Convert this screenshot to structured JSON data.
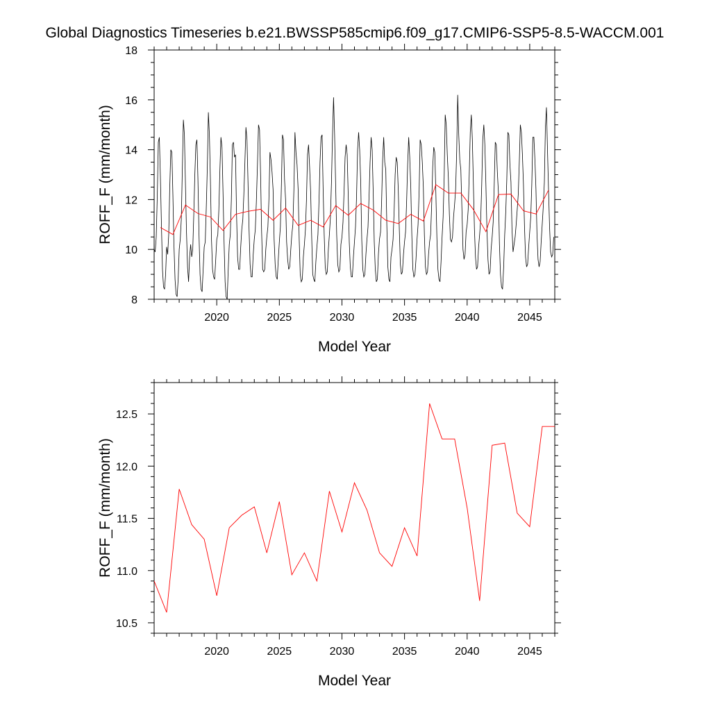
{
  "figure_title": "Global Diagnostics Timeseries b.e21.BWSSP585cmip6.f09_g17.CMIP6-SSP5-8.5-WACCM.001",
  "colors": {
    "monthly": "#000000",
    "annual": "#ff0000",
    "frame": "#000000"
  },
  "chart_data": [
    {
      "type": "line",
      "xlabel": "Model Year",
      "ylabel": "ROFF_F (mm/month)",
      "xlim": [
        2015,
        2047
      ],
      "ylim": [
        8,
        18
      ],
      "x_ticks": [
        2020,
        2025,
        2030,
        2035,
        2040,
        2045
      ],
      "y_ticks": [
        8,
        10,
        12,
        14,
        16,
        18
      ],
      "grid": false,
      "series": [
        {
          "kind": "monthly",
          "x_start": 2015.0,
          "x_step": 0.08333,
          "values": [
            10.0,
            9.9,
            10.5,
            12.1,
            14.3,
            14.5,
            12.9,
            11.0,
            9.2,
            8.5,
            8.4,
            9.0,
            10.1,
            9.8,
            10.6,
            12.5,
            14.0,
            13.9,
            12.2,
            10.2,
            8.8,
            8.2,
            8.1,
            8.8,
            10.0,
            10.4,
            11.2,
            13.2,
            15.2,
            14.6,
            12.6,
            10.7,
            9.3,
            8.7,
            9.7,
            10.2,
            9.7,
            10.0,
            11.4,
            13.0,
            14.2,
            14.4,
            12.8,
            10.6,
            9.0,
            8.4,
            8.3,
            9.2,
            10.1,
            10.3,
            11.7,
            13.3,
            15.5,
            14.6,
            12.7,
            10.4,
            9.2,
            8.9,
            8.8,
            9.6,
            10.4,
            10.6,
            11.6,
            13.2,
            14.5,
            14.1,
            12.3,
            10.3,
            8.7,
            8.1,
            8.0,
            9.2,
            10.2,
            10.6,
            12.0,
            14.2,
            14.3,
            13.7,
            13.8,
            11.4,
            9.7,
            9.2,
            9.2,
            10.1,
            10.8,
            11.2,
            12.2,
            13.5,
            14.9,
            14.4,
            12.7,
            10.8,
            9.4,
            8.9,
            8.9,
            9.8,
            10.4,
            10.8,
            11.9,
            13.4,
            15.0,
            14.8,
            13.0,
            10.7,
            9.2,
            9.1,
            9.2,
            10.0,
            10.5,
            10.9,
            12.0,
            13.9,
            13.6,
            13.1,
            12.4,
            10.4,
            9.4,
            8.9,
            8.8,
            9.6,
            10.3,
            10.9,
            12.6,
            14.6,
            14.4,
            12.8,
            12.0,
            10.3,
            9.6,
            9.2,
            9.3,
            10.0,
            10.6,
            11.0,
            12.4,
            14.7,
            13.9,
            13.4,
            12.4,
            10.4,
            9.0,
            8.7,
            8.8,
            9.7,
            10.2,
            10.8,
            12.0,
            13.8,
            14.2,
            13.3,
            12.3,
            10.5,
            9.0,
            8.8,
            8.7,
            9.5,
            10.1,
            10.6,
            11.9,
            13.5,
            14.5,
            14.6,
            12.4,
            10.6,
            9.3,
            9.0,
            9.1,
            10.0,
            10.6,
            11.3,
            12.7,
            14.6,
            16.1,
            14.6,
            12.6,
            10.6,
            9.4,
            9.1,
            9.2,
            10.2,
            10.5,
            11.1,
            12.3,
            13.7,
            14.2,
            13.8,
            12.2,
            10.3,
            9.3,
            8.9,
            8.9,
            9.7,
            10.3,
            10.9,
            12.1,
            14.0,
            14.7,
            14.0,
            12.7,
            10.4,
            9.2,
            8.9,
            9.0,
            9.8,
            10.4,
            10.9,
            12.1,
            13.5,
            14.5,
            14.0,
            12.3,
            10.3,
            9.2,
            8.7,
            8.8,
            9.8,
            10.4,
            10.7,
            11.9,
            13.6,
            14.5,
            13.5,
            13.2,
            11.0,
            9.3,
            8.8,
            8.7,
            9.7,
            10.0,
            10.4,
            11.5,
            13.0,
            13.7,
            13.5,
            12.4,
            10.8,
            9.4,
            9.0,
            9.1,
            9.8,
            10.3,
            10.7,
            11.9,
            13.4,
            14.5,
            13.7,
            12.5,
            10.6,
            9.2,
            8.9,
            9.0,
            9.6,
            10.4,
            11.0,
            12.3,
            14.4,
            14.2,
            13.5,
            12.5,
            10.6,
            9.3,
            9.0,
            9.1,
            9.8,
            10.3,
            10.6,
            11.8,
            13.3,
            14.1,
            13.9,
            12.3,
            10.5,
            9.2,
            8.8,
            8.7,
            9.5,
            10.5,
            11.3,
            12.9,
            15.4,
            15.0,
            13.8,
            12.9,
            11.4,
            10.4,
            10.3,
            10.5,
            11.3,
            11.8,
            12.4,
            13.9,
            16.2,
            14.6,
            13.6,
            13.2,
            11.6,
            10.0,
            9.6,
            9.8,
            10.7,
            11.0,
            11.6,
            13.0,
            14.7,
            15.4,
            14.4,
            12.6,
            10.8,
            9.7,
            9.2,
            9.3,
            10.1,
            10.6,
            11.2,
            12.6,
            14.4,
            15.0,
            14.2,
            12.6,
            10.8,
            9.6,
            9.0,
            9.1,
            10.0,
            10.5,
            11.1,
            12.6,
            14.3,
            14.2,
            13.1,
            12.3,
            10.2,
            9.0,
            8.5,
            8.4,
            9.3,
            10.6,
            11.5,
            12.8,
            14.7,
            14.6,
            13.4,
            12.7,
            10.8,
            9.9,
            10.2,
            10.5,
            11.0,
            11.6,
            12.2,
            13.5,
            15.0,
            14.7,
            13.8,
            12.6,
            10.9,
            9.7,
            9.3,
            9.4,
            10.1,
            10.7,
            11.3,
            12.6,
            14.5,
            14.5,
            13.6,
            12.4,
            10.6,
            9.6,
            9.3,
            9.5,
            10.3,
            11.0,
            11.7,
            12.7,
            14.9,
            15.7,
            14.0,
            12.4,
            10.9,
            9.9,
            9.7,
            9.8,
            10.5
          ]
        },
        {
          "kind": "annual",
          "x": [
            2015.5,
            2016.5,
            2017.5,
            2018.5,
            2019.5,
            2020.5,
            2021.5,
            2022.5,
            2023.5,
            2024.5,
            2025.5,
            2026.5,
            2027.5,
            2028.5,
            2029.5,
            2030.5,
            2031.5,
            2032.5,
            2033.5,
            2034.5,
            2035.5,
            2036.5,
            2037.5,
            2038.5,
            2039.5,
            2040.5,
            2041.5,
            2042.5,
            2043.5,
            2044.5,
            2045.5,
            2046.5
          ],
          "values": [
            10.88,
            10.6,
            11.78,
            11.44,
            11.3,
            10.76,
            11.41,
            11.53,
            11.61,
            11.17,
            11.66,
            10.96,
            11.17,
            10.9,
            11.76,
            11.37,
            11.84,
            11.58,
            11.17,
            11.04,
            11.41,
            11.14,
            12.6,
            12.26,
            12.26,
            11.6,
            10.71,
            12.2,
            12.22,
            11.55,
            11.42,
            12.38
          ]
        }
      ]
    },
    {
      "type": "line",
      "xlabel": "Model Year",
      "ylabel": "ROFF_F (mm/month)",
      "xlim": [
        2015,
        2047
      ],
      "ylim": [
        10.4,
        12.8
      ],
      "x_ticks": [
        2020,
        2025,
        2030,
        2035,
        2040,
        2045
      ],
      "y_ticks": [
        10.5,
        11.0,
        11.5,
        12.0,
        12.5
      ],
      "y_tick_labels": [
        "10.5",
        "11.0",
        "11.5",
        "12.0",
        "12.5"
      ],
      "grid": false,
      "series": [
        {
          "kind": "annual",
          "x": [
            2015.0,
            2016.0,
            2017.0,
            2018.0,
            2019.0,
            2020.0,
            2021.0,
            2022.0,
            2023.0,
            2024.0,
            2025.0,
            2026.0,
            2027.0,
            2028.0,
            2029.0,
            2030.0,
            2031.0,
            2032.0,
            2033.0,
            2034.0,
            2035.0,
            2036.0,
            2037.0,
            2038.0,
            2039.0,
            2040.0,
            2041.0,
            2042.0,
            2043.0,
            2044.0,
            2045.0,
            2046.0,
            2047.0
          ],
          "values": [
            10.9,
            10.6,
            11.78,
            11.44,
            11.3,
            10.76,
            11.41,
            11.53,
            11.61,
            11.17,
            11.66,
            10.96,
            11.17,
            10.9,
            11.76,
            11.37,
            11.84,
            11.58,
            11.17,
            11.04,
            11.41,
            11.14,
            12.6,
            12.26,
            12.26,
            11.6,
            10.71,
            12.2,
            12.22,
            11.55,
            11.42,
            12.38,
            12.38
          ]
        }
      ]
    }
  ]
}
